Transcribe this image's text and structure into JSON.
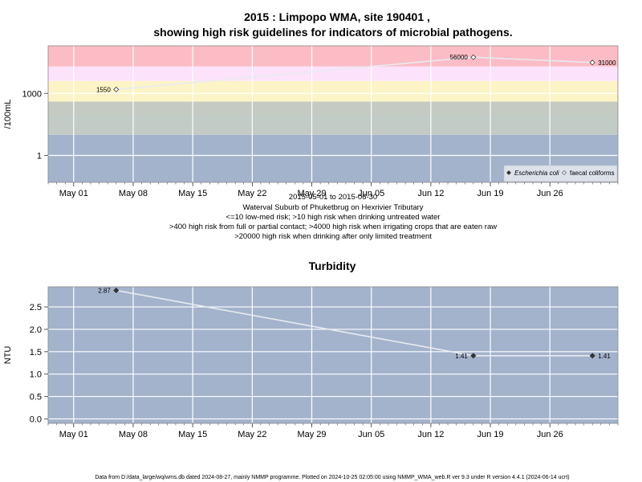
{
  "chart_data": [
    {
      "type": "line",
      "title": "2015 : Limpopo WMA, site 190401 ,",
      "subtitle": "showing high risk guidelines for indicators of microbial pathogens.",
      "ylabel": "/100mL",
      "yscale": "log",
      "ylim": [
        0.05,
        200000
      ],
      "y_ticks": [
        1,
        1000
      ],
      "y_tick_labels": [
        "1",
        "1000"
      ],
      "xlim": [
        "2015-04-28",
        "2015-07-04"
      ],
      "x_ticks": [
        "2015-05-01",
        "2015-05-08",
        "2015-05-15",
        "2015-05-22",
        "2015-05-29",
        "2015-06-05",
        "2015-06-12",
        "2015-06-19",
        "2015-06-26"
      ],
      "x_tick_labels": [
        "May 01",
        "May 08",
        "May 15",
        "May 22",
        "May 29",
        "Jun 05",
        "Jun 12",
        "Jun 19",
        "Jun 26"
      ],
      "bands": [
        {
          "from": 0.05,
          "to": 10,
          "color": "#a3b3cc"
        },
        {
          "from": 10,
          "to": 100,
          "color": "#c2cbc5"
        },
        {
          "from": 100,
          "to": 400,
          "color": "#c5cbc2"
        },
        {
          "from": 400,
          "to": 4000,
          "color": "#fcf4c6"
        },
        {
          "from": 4000,
          "to": 20000,
          "color": "#fce2fa"
        },
        {
          "from": 20000,
          "to": 200000,
          "color": "#fcbcc6"
        }
      ],
      "series": [
        {
          "name": "faecal coliforms",
          "marker": "open-diamond",
          "x": [
            "2015-05-06",
            "2015-06-17",
            "2015-07-01"
          ],
          "y": [
            1550,
            56000,
            31000
          ],
          "labels": [
            "1550",
            "56000",
            "31000"
          ]
        }
      ],
      "legend": {
        "placement": "bottom-right",
        "entries": [
          "Escherichia coli",
          "faecal coliforms"
        ]
      },
      "xlabel_lines": [
        "2015-05-01 to 2015-06-30",
        "Waterval Suburb of Phuketbrug on Hexrivier Tributary",
        "<=10 low-med risk; >10 high risk when drinking untreated water",
        ">400 high risk from full or partial contact; >4000 high risk when irrigating crops that are eaten raw",
        ">20000 high risk when drinking after only limited treatment"
      ]
    },
    {
      "type": "line",
      "title": "Turbidity",
      "ylabel": "NTU",
      "ylim": [
        -0.1,
        2.95
      ],
      "y_ticks": [
        0,
        0.5,
        1,
        1.5,
        2,
        2.5
      ],
      "y_tick_labels": [
        "0.0",
        "0.5",
        "1.0",
        "1.5",
        "2.0",
        "2.5"
      ],
      "xlim": [
        "2015-04-28",
        "2015-07-04"
      ],
      "x_ticks": [
        "2015-05-01",
        "2015-05-08",
        "2015-05-15",
        "2015-05-22",
        "2015-05-29",
        "2015-06-05",
        "2015-06-12",
        "2015-06-19",
        "2015-06-26"
      ],
      "x_tick_labels": [
        "May 01",
        "May 08",
        "May 15",
        "May 22",
        "May 29",
        "Jun 05",
        "Jun 12",
        "Jun 19",
        "Jun 26"
      ],
      "series": [
        {
          "name": "",
          "marker": "filled-diamond",
          "x": [
            "2015-05-06",
            "2015-06-17",
            "2015-07-01"
          ],
          "y": [
            2.87,
            1.41,
            1.41
          ],
          "labels": [
            "2.87",
            "1.41",
            "1.41"
          ]
        }
      ]
    }
  ],
  "footer": "Data from D:/data_large/wq/wms.db dated 2024-08-27, mainly NMMP programme. Plotted on 2024-10-25 02:05:00 using NMMP_WMA_web.R ver 9.3 under R version 4.4.1 (2024-06-14 ucrt)"
}
